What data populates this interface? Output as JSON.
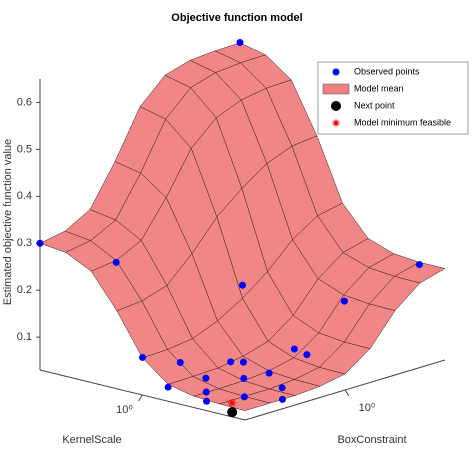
{
  "chart_data": {
    "type": "surface",
    "title": "Objective function model",
    "xlabel": "KernelScale",
    "ylabel": "BoxConstraint",
    "zlabel": "Estimated objective function value",
    "xscale": "log",
    "yscale": "log",
    "xlim": [
      0.01,
      100
    ],
    "ylim": [
      0.01,
      100
    ],
    "zlim": [
      0.03,
      0.65
    ],
    "xticks": [
      {
        "value": 1,
        "label": "10⁰"
      }
    ],
    "yticks": [
      {
        "value": 1,
        "label": "10⁰"
      }
    ],
    "zticks": [
      0.1,
      0.2,
      0.3,
      0.4,
      0.5,
      0.6
    ],
    "legend": "upper right",
    "surface": {
      "name": "Model mean",
      "color": "#f08080",
      "x": [
        0.01,
        0.0316,
        0.1,
        0.316,
        1,
        3.16,
        10,
        31.6,
        100
      ],
      "y": [
        0.01,
        0.0316,
        0.1,
        0.316,
        1,
        3.16,
        10,
        31.6,
        100
      ],
      "z": [
        [
          0.05,
          0.05,
          0.05,
          0.054,
          0.064,
          0.102,
          0.167,
          0.21,
          0.225
        ],
        [
          0.051,
          0.051,
          0.051,
          0.055,
          0.065,
          0.103,
          0.168,
          0.211,
          0.225
        ],
        [
          0.054,
          0.054,
          0.055,
          0.06,
          0.072,
          0.109,
          0.174,
          0.216,
          0.23
        ],
        [
          0.066,
          0.067,
          0.069,
          0.078,
          0.094,
          0.133,
          0.195,
          0.235,
          0.249
        ],
        [
          0.109,
          0.111,
          0.118,
          0.14,
          0.172,
          0.213,
          0.265,
          0.3,
          0.311
        ],
        [
          0.196,
          0.201,
          0.218,
          0.27,
          0.332,
          0.377,
          0.414,
          0.435,
          0.441
        ],
        [
          0.267,
          0.274,
          0.301,
          0.376,
          0.465,
          0.514,
          0.536,
          0.545,
          0.547
        ],
        [
          0.294,
          0.303,
          0.331,
          0.415,
          0.514,
          0.565,
          0.581,
          0.586,
          0.587
        ],
        [
          0.3,
          0.31,
          0.34,
          0.426,
          0.527,
          0.578,
          0.594,
          0.598,
          0.599
        ]
      ]
    },
    "series": [
      {
        "name": "Observed points",
        "color": "#0000ff",
        "x": [
          100,
          100,
          10,
          1,
          0.0316,
          0.0316,
          0.0316,
          0.316,
          0.1,
          0.178,
          0.316,
          0.0316,
          0.0562,
          0.1,
          0.0178,
          0.178,
          0.0562,
          1,
          0.562,
          0.01,
          0.0316
        ],
        "y": [
          0.01,
          100,
          0.0316,
          1,
          100,
          3.16,
          0.316,
          0.178,
          0.1,
          0.0316,
          0.01,
          0.0316,
          0.01,
          0.0178,
          0.1,
          0.178,
          0.178,
          0.01,
          0.0316,
          0.0562,
          0.562
        ],
        "z": [
          0.3,
          0.6,
          0.27,
          0.2,
          0.22,
          0.19,
          0.12,
          0.074,
          0.06,
          0.07,
          0.06,
          0.05,
          0.05,
          0.055,
          0.06,
          0.08,
          0.07,
          0.11,
          0.09,
          0.05,
          0.1
        ]
      },
      {
        "name": "Next point",
        "color": "#000000",
        "x": [
          0.0178
        ],
        "y": [
          0.01
        ],
        "z": [
          0.04
        ]
      },
      {
        "name": "Model minimum feasible",
        "color": "#ff0000",
        "x": [
          0.0316
        ],
        "y": [
          0.0178
        ],
        "z": [
          0.045
        ]
      }
    ]
  }
}
